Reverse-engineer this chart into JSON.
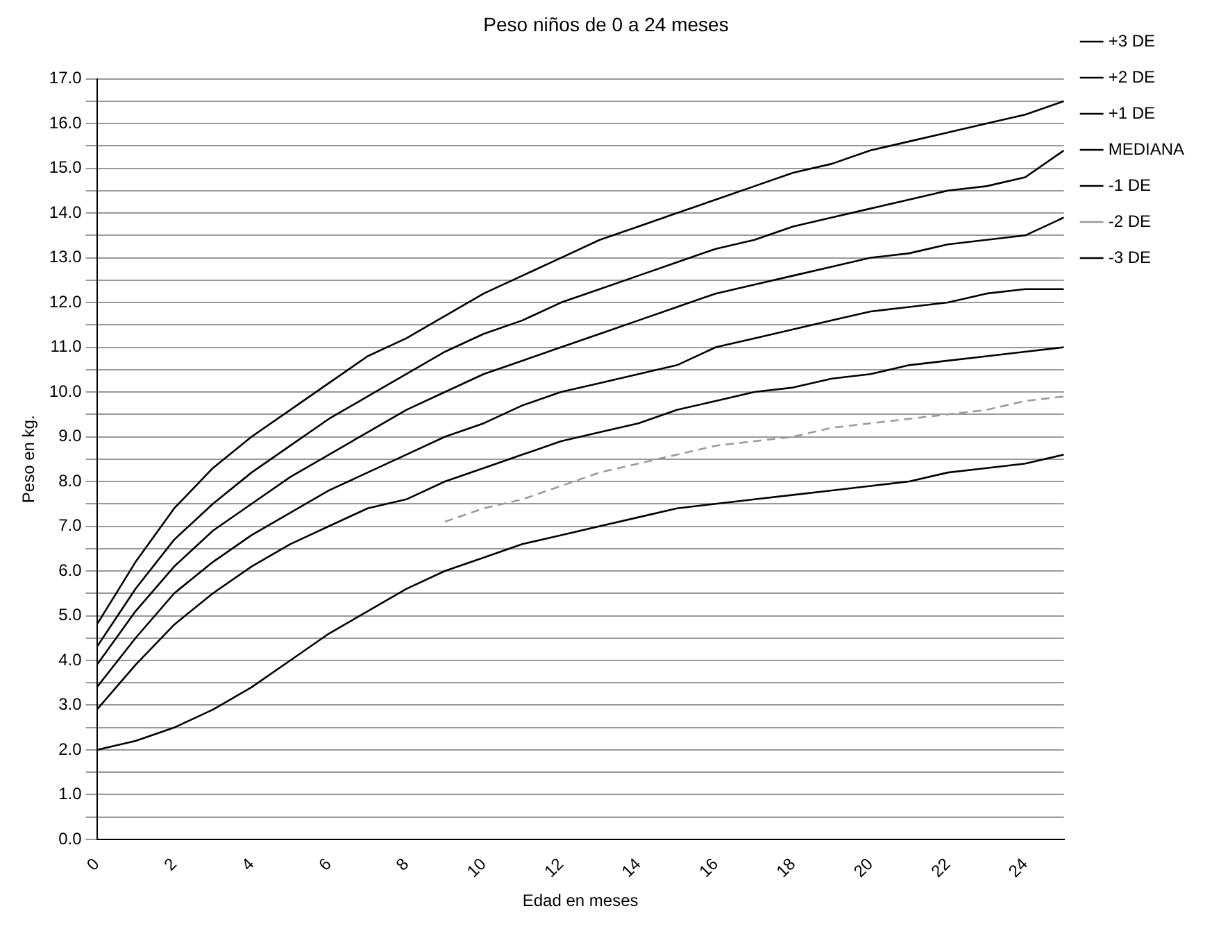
{
  "chart_data": {
    "type": "line",
    "title": "Peso niños de 0 a 24 meses",
    "xlabel": "Edad en meses",
    "ylabel": "Peso en kg.",
    "x": [
      0,
      1,
      2,
      3,
      4,
      5,
      6,
      7,
      8,
      9,
      10,
      11,
      12,
      13,
      14,
      15,
      16,
      17,
      18,
      19,
      20,
      21,
      22,
      23,
      24,
      25
    ],
    "xlim": [
      0,
      25
    ],
    "xticks": [
      0,
      2,
      4,
      6,
      8,
      10,
      12,
      14,
      16,
      18,
      20,
      22,
      24
    ],
    "ylim": [
      0,
      17
    ],
    "yticks": [
      {
        "value": 0,
        "label": "0.0"
      },
      {
        "value": 0.5,
        "label": null
      },
      {
        "value": 1,
        "label": "1.0"
      },
      {
        "value": 1.5,
        "label": null
      },
      {
        "value": 2,
        "label": "2.0"
      },
      {
        "value": 2.5,
        "label": null
      },
      {
        "value": 3,
        "label": "3.0"
      },
      {
        "value": 3.5,
        "label": null
      },
      {
        "value": 4,
        "label": "4.0"
      },
      {
        "value": 4.5,
        "label": null
      },
      {
        "value": 5,
        "label": "5.0"
      },
      {
        "value": 5.5,
        "label": null
      },
      {
        "value": 6,
        "label": "6.0"
      },
      {
        "value": 6.5,
        "label": null
      },
      {
        "value": 7,
        "label": "7.0"
      },
      {
        "value": 7.5,
        "label": null
      },
      {
        "value": 8,
        "label": "8.0"
      },
      {
        "value": 8.5,
        "label": null
      },
      {
        "value": 9,
        "label": "9.0"
      },
      {
        "value": 9.5,
        "label": null
      },
      {
        "value": 10,
        "label": "10.0"
      },
      {
        "value": 10.5,
        "label": null
      },
      {
        "value": 11,
        "label": "11.0"
      },
      {
        "value": 11.5,
        "label": null
      },
      {
        "value": 12,
        "label": "12.0"
      },
      {
        "value": 12.5,
        "label": null
      },
      {
        "value": 13,
        "label": "13.0"
      },
      {
        "value": 13.5,
        "label": null
      },
      {
        "value": 14,
        "label": "14.0"
      },
      {
        "value": 14.5,
        "label": null
      },
      {
        "value": 15,
        "label": "15.0"
      },
      {
        "value": 15.5,
        "label": null
      },
      {
        "value": 16,
        "label": "16.0"
      },
      {
        "value": 16.5,
        "label": null
      },
      {
        "value": 17,
        "label": "17.0"
      }
    ],
    "grid": "y",
    "legend": "right",
    "marker": "none",
    "series": [
      {
        "name": "+3 DE",
        "color": "#000000",
        "values": [
          4.8,
          6.2,
          7.4,
          8.3,
          9.0,
          9.6,
          10.2,
          10.8,
          11.2,
          11.7,
          12.2,
          12.6,
          13.0,
          13.4,
          13.7,
          14.0,
          14.3,
          14.6,
          14.9,
          15.1,
          15.4,
          15.6,
          15.8,
          16.0,
          16.2,
          16.5
        ]
      },
      {
        "name": "+2 DE",
        "color": "#000000",
        "values": [
          4.3,
          5.6,
          6.7,
          7.5,
          8.2,
          8.8,
          9.4,
          9.9,
          10.4,
          10.9,
          11.3,
          11.6,
          12.0,
          12.3,
          12.6,
          12.9,
          13.2,
          13.4,
          13.7,
          13.9,
          14.1,
          14.3,
          14.5,
          14.6,
          14.8,
          15.4
        ]
      },
      {
        "name": "+1 DE",
        "color": "#000000",
        "values": [
          3.9,
          5.1,
          6.1,
          6.9,
          7.5,
          8.1,
          8.6,
          9.1,
          9.6,
          10.0,
          10.4,
          10.7,
          11.0,
          11.3,
          11.6,
          11.9,
          12.2,
          12.4,
          12.6,
          12.8,
          13.0,
          13.1,
          13.3,
          13.4,
          13.5,
          13.9
        ]
      },
      {
        "name": "MEDIANA",
        "color": "#000000",
        "values": [
          3.4,
          4.5,
          5.5,
          6.2,
          6.8,
          7.3,
          7.8,
          8.2,
          8.6,
          9.0,
          9.3,
          9.7,
          10.0,
          10.2,
          10.4,
          10.6,
          11.0,
          11.2,
          11.4,
          11.6,
          11.8,
          11.9,
          12.0,
          12.2,
          12.3,
          12.3
        ]
      },
      {
        "name": "-1 DE",
        "color": "#000000",
        "values": [
          2.9,
          3.9,
          4.8,
          5.5,
          6.1,
          6.6,
          7.0,
          7.4,
          7.6,
          8.0,
          8.3,
          8.6,
          8.9,
          9.1,
          9.3,
          9.6,
          9.8,
          10.0,
          10.1,
          10.3,
          10.4,
          10.6,
          10.7,
          10.8,
          10.9,
          11.0
        ]
      },
      {
        "name": "-2 DE",
        "color": "#9a9a9a",
        "line_style": "dashed",
        "values": [
          null,
          null,
          null,
          null,
          null,
          null,
          null,
          null,
          null,
          7.1,
          7.4,
          7.6,
          7.9,
          8.2,
          8.4,
          8.6,
          8.8,
          8.9,
          9.0,
          9.2,
          9.3,
          9.4,
          9.5,
          9.6,
          9.8,
          9.9
        ]
      },
      {
        "name": "-3 DE",
        "color": "#000000",
        "values": [
          2.0,
          2.2,
          2.5,
          2.9,
          3.4,
          4.0,
          4.6,
          5.1,
          5.6,
          6.0,
          6.3,
          6.6,
          6.8,
          7.0,
          7.2,
          7.4,
          7.5,
          7.6,
          7.7,
          7.8,
          7.9,
          8.0,
          8.2,
          8.3,
          8.4,
          8.6
        ]
      }
    ]
  }
}
